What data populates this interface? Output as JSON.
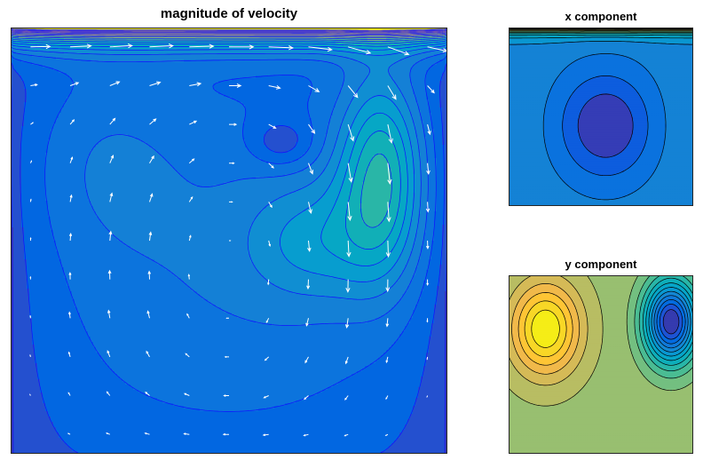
{
  "chart_data": [
    {
      "type": "contour",
      "title": "magnitude of velocity",
      "overlay": "quiver",
      "colormap": "parula",
      "contour_line_color": "#1010ff",
      "arrow_color": "#ffffff",
      "axes_ticks": "none",
      "xlim": [
        0,
        1
      ],
      "ylim": [
        0,
        1
      ],
      "features": [
        {
          "kind": "lid-shear-layer",
          "location": "top edge",
          "value": "max"
        },
        {
          "kind": "primary-vortex-core",
          "x": 0.62,
          "y": 0.73,
          "value": "min"
        },
        {
          "kind": "high-speed-lobe",
          "x": 0.9,
          "y": 0.78,
          "value": "high"
        },
        {
          "kind": "plateau-lobe",
          "x": 0.2,
          "y": 0.72,
          "value": "medium"
        }
      ]
    },
    {
      "type": "contour",
      "title": "x component",
      "colormap": "parula",
      "contour_line_color": "#000000",
      "axes_ticks": "none",
      "xlim": [
        0,
        1
      ],
      "ylim": [
        0,
        1
      ],
      "features": [
        {
          "kind": "lid-driven-maximum",
          "location": "top edge",
          "value": "max"
        },
        {
          "kind": "return-flow-minimum",
          "x": 0.55,
          "y": 0.45,
          "value": "min"
        }
      ]
    },
    {
      "type": "contour",
      "title": "y component",
      "colormap": "parula",
      "contour_line_color": "#000000",
      "axes_ticks": "none",
      "xlim": [
        0,
        1
      ],
      "ylim": [
        0,
        1
      ],
      "features": [
        {
          "kind": "upward-flow-maximum",
          "x": 0.2,
          "y": 0.72,
          "value": "max"
        },
        {
          "kind": "downward-flow-minimum",
          "x": 0.9,
          "y": 0.82,
          "value": "min"
        }
      ]
    }
  ]
}
